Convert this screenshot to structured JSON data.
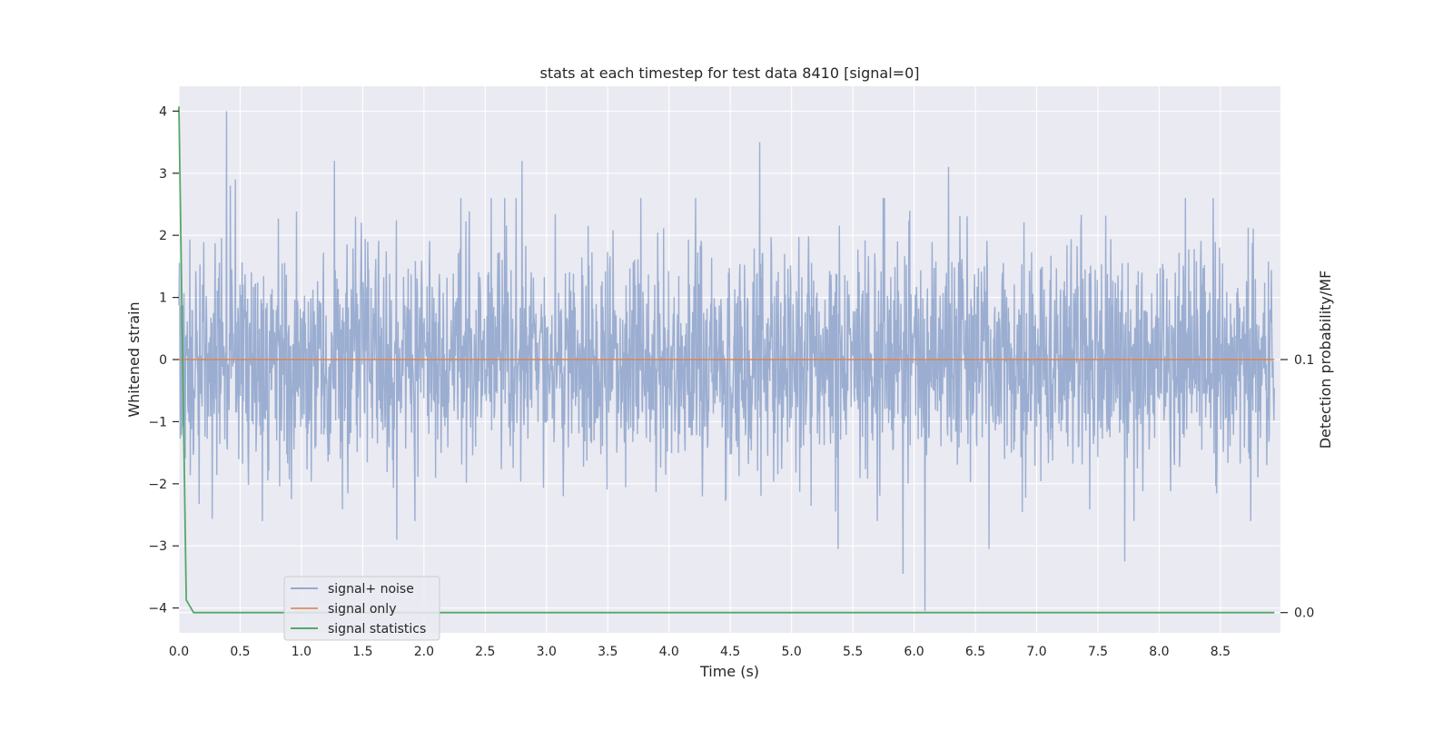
{
  "chart_data": {
    "type": "line",
    "title": "stats at each timestep for test data 8410 [signal=0]",
    "xlabel": "Time (s)",
    "ylabel": "Whitened strain",
    "ylabel_right": "Detection probability/MF",
    "xlim": [
      0,
      8.99
    ],
    "ylim": [
      -4.4,
      4.4
    ],
    "ylim_right": [
      -0.008,
      0.208
    ],
    "x_ticks": [
      0.0,
      0.5,
      1.0,
      1.5,
      2.0,
      2.5,
      3.0,
      3.5,
      4.0,
      4.5,
      5.0,
      5.5,
      6.0,
      6.5,
      7.0,
      7.5,
      8.0,
      8.5
    ],
    "x_tick_labels": [
      "0.0",
      "0.5",
      "1.0",
      "1.5",
      "2.0",
      "2.5",
      "3.0",
      "3.5",
      "4.0",
      "4.5",
      "5.0",
      "5.5",
      "6.0",
      "6.5",
      "7.0",
      "7.5",
      "8.0",
      "8.5"
    ],
    "y_ticks": [
      4,
      3,
      2,
      1,
      0,
      -1,
      -2,
      -3,
      -4
    ],
    "y_tick_labels": [
      "4",
      "3",
      "2",
      "1",
      "0",
      "−1",
      "−2",
      "−3",
      "−4"
    ],
    "y_ticks_right": [
      0.1,
      0.0
    ],
    "y_tick_labels_right": [
      "0.1",
      "0.0"
    ],
    "grid": true,
    "legend_position": "lower-left",
    "legend": [
      "signal+ noise",
      "signal only",
      "signal statistics"
    ],
    "series": [
      {
        "name": "signal+ noise",
        "axis": "left",
        "color": "#4c72b0",
        "style": "whitened strain noise, approx. Gaussian with std 0.9 spanning -4 to 4",
        "peaks": [
          {
            "x": 0.39,
            "y": 4.0
          },
          {
            "x": 0.42,
            "y": 2.8
          },
          {
            "x": 0.46,
            "y": 2.9
          },
          {
            "x": 1.27,
            "y": 3.2
          },
          {
            "x": 2.8,
            "y": 3.2
          },
          {
            "x": 4.74,
            "y": 3.5
          },
          {
            "x": 6.28,
            "y": 3.1
          },
          {
            "x": 1.78,
            "y": -2.9
          },
          {
            "x": 5.38,
            "y": -3.05
          },
          {
            "x": 5.91,
            "y": -3.45
          },
          {
            "x": 6.09,
            "y": -4.05
          },
          {
            "x": 6.61,
            "y": -3.05
          },
          {
            "x": 7.72,
            "y": -3.25
          }
        ]
      },
      {
        "name": "signal only",
        "axis": "left",
        "color": "#dd8452",
        "x": [
          0.0,
          8.94
        ],
        "y": [
          0.0,
          0.0
        ]
      },
      {
        "name": "signal statistics",
        "axis": "right",
        "color": "#55a868",
        "x": [
          0.0,
          0.06,
          0.12,
          0.2,
          1.0,
          2.0,
          3.0,
          4.0,
          5.0,
          6.0,
          7.0,
          8.0,
          8.94
        ],
        "y": [
          0.2,
          0.005,
          0.0,
          0.0,
          0.0,
          0.0,
          0.0,
          0.0,
          0.0,
          0.0,
          0.0,
          0.0,
          0.0
        ]
      }
    ]
  }
}
